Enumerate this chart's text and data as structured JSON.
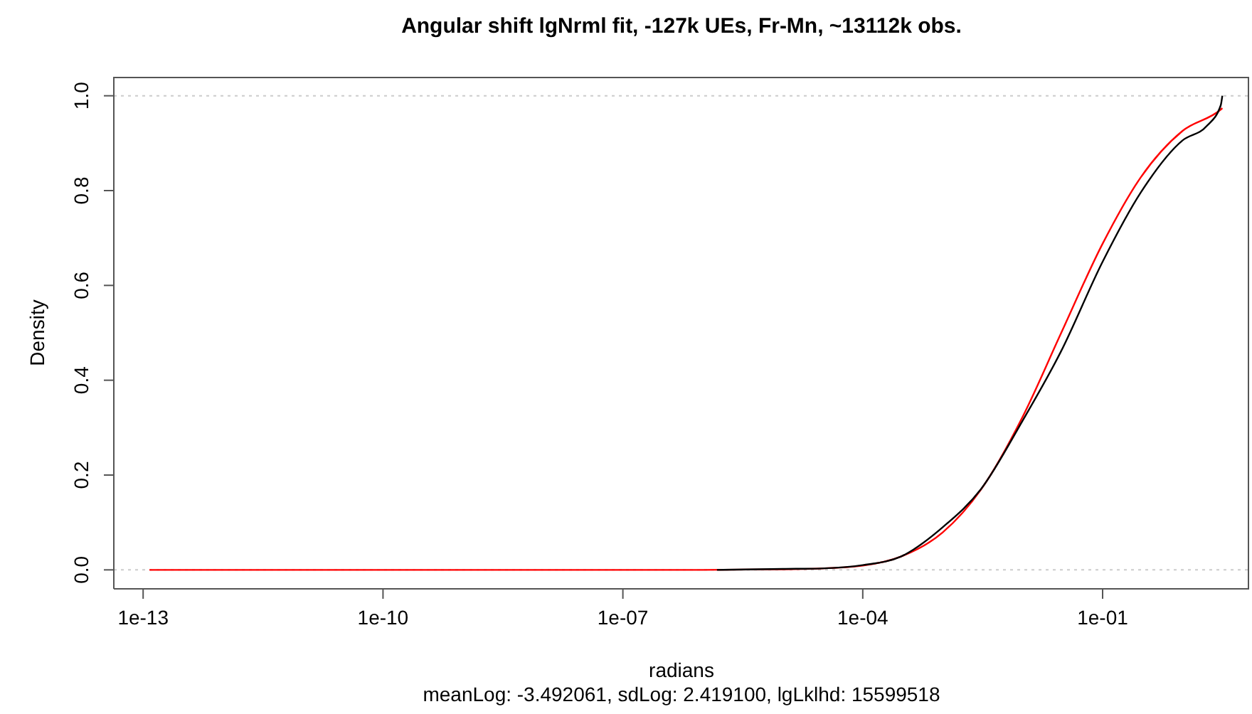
{
  "chart_data": {
    "type": "line",
    "title": "Angular shift lgNrml fit, -127k UEs, Fr-Mn, ~13112k obs.",
    "subtitle": "meanLog: -3.492061, sdLog: 2.419100, lgLklhd: 15599518",
    "xlabel": "radians",
    "ylabel": "Density",
    "log": "x",
    "xlim": [
      4.3e-14,
      6.8
    ],
    "xticks": [
      {
        "value": 1e-13,
        "label": "1e-13"
      },
      {
        "value": 1e-10,
        "label": "1e-10"
      },
      {
        "value": 1e-07,
        "label": "1e-07"
      },
      {
        "value": 0.0001,
        "label": "1e-04"
      },
      {
        "value": 0.1,
        "label": "1e-01"
      }
    ],
    "ylim": [
      -0.04,
      1.04
    ],
    "yticks": [
      {
        "value": 0,
        "label": "0.0"
      },
      {
        "value": 0.2,
        "label": "0.2"
      },
      {
        "value": 0.4,
        "label": "0.4"
      },
      {
        "value": 0.6,
        "label": "0.6"
      },
      {
        "value": 0.8,
        "label": "0.8"
      },
      {
        "value": 1,
        "label": "1.0"
      }
    ],
    "grid": false,
    "line_style": "solid",
    "marker": "none",
    "ref_lines": [
      {
        "axis": "y",
        "value": 0,
        "color": "#cccccc",
        "line_style": "dotted"
      },
      {
        "axis": "y",
        "value": 1,
        "color": "#cccccc",
        "line_style": "dotted"
      }
    ],
    "series": [
      {
        "color": "#ff0000",
        "x": [
          1.2e-13,
          1e-06,
          1e-05,
          3e-05,
          0.0001,
          0.0003,
          0.001,
          0.003,
          0.01,
          0.03,
          0.1,
          0.3,
          1,
          3,
          3.14
        ],
        "values": [
          0,
          0,
          0.001,
          0.003,
          0.009,
          0.028,
          0.079,
          0.169,
          0.323,
          0.498,
          0.688,
          0.828,
          0.926,
          0.971,
          0.974
        ]
      },
      {
        "color": "#000000",
        "x": [
          1.5e-06,
          1e-05,
          3e-05,
          0.0001,
          0.0003,
          0.001,
          0.003,
          0.01,
          0.03,
          0.1,
          0.3,
          1,
          2,
          3,
          3.14
        ],
        "values": [
          0,
          0.002,
          0.003,
          0.01,
          0.028,
          0.09,
          0.17,
          0.315,
          0.46,
          0.65,
          0.796,
          0.906,
          0.936,
          0.98,
          1
        ]
      }
    ]
  }
}
